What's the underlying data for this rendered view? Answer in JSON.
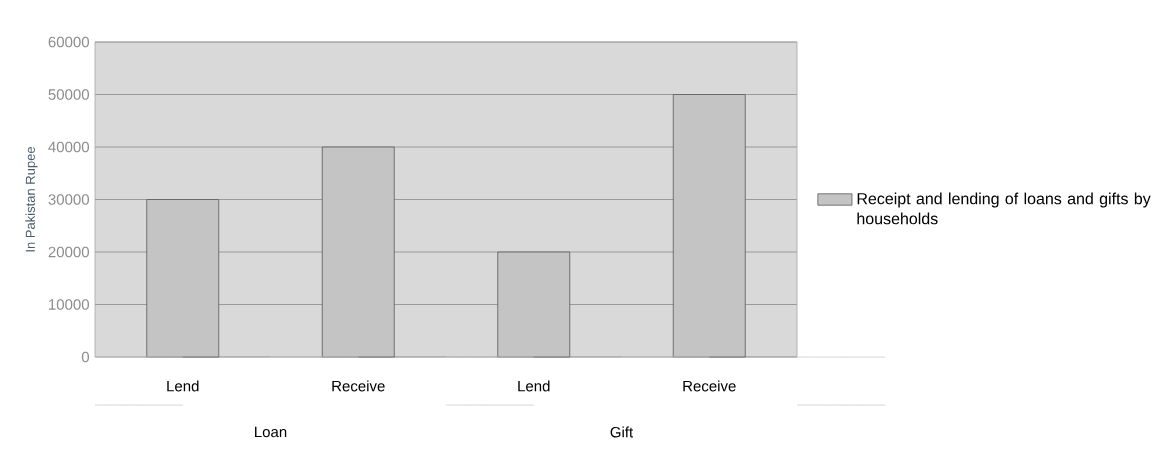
{
  "chart_data": {
    "type": "bar",
    "ylabel": "In Pakistan Rupee",
    "categories": [
      "Lend",
      "Receive",
      "Lend",
      "Receive"
    ],
    "series": [
      {
        "name": "Receipt and lending of loans and gifts by households",
        "color": "#c4c4c4",
        "values": [
          30000,
          40000,
          20000,
          50000
        ]
      }
    ],
    "ylim": [
      0,
      60000
    ],
    "yticks": [
      0,
      10000,
      20000,
      30000,
      40000,
      50000,
      60000
    ],
    "grid": "y",
    "legend": "right",
    "annotations": [
      "Loan",
      "Gift"
    ]
  }
}
